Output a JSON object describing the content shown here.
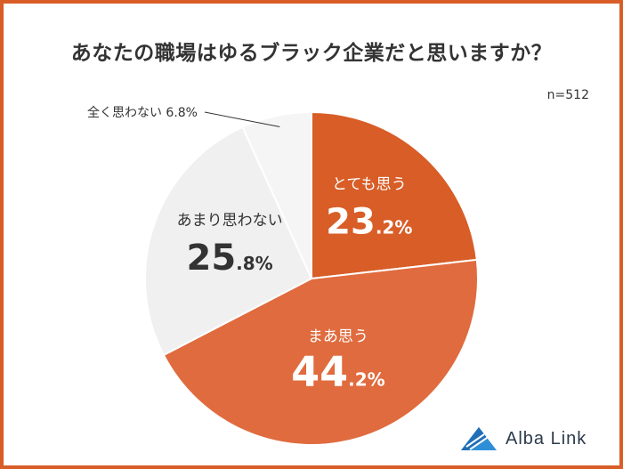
{
  "chart_data": {
    "type": "pie",
    "title": "あなたの職場はゆるブラック企業だと思いますか？",
    "sample_size": "n=512",
    "slices": [
      {
        "label": "とても思う",
        "value": 23.2,
        "value_major": "23",
        "value_minor": ".2%",
        "color": "#d85d27",
        "text_color": "#ffffff"
      },
      {
        "label": "まあ思う",
        "value": 44.2,
        "value_major": "44",
        "value_minor": ".2%",
        "color": "#e06b3e",
        "text_color": "#ffffff"
      },
      {
        "label": "あまり思わない",
        "value": 25.8,
        "value_major": "25",
        "value_minor": ".8%",
        "color": "#f0f0f0",
        "text_color": "#333333"
      },
      {
        "label": "全く思わない",
        "value": 6.8,
        "value_text": "6.8%",
        "color": "#f5f5f5",
        "text_color": "#333333"
      }
    ]
  },
  "brand": {
    "name": "Alba Link",
    "color": "#2f8fd6"
  }
}
